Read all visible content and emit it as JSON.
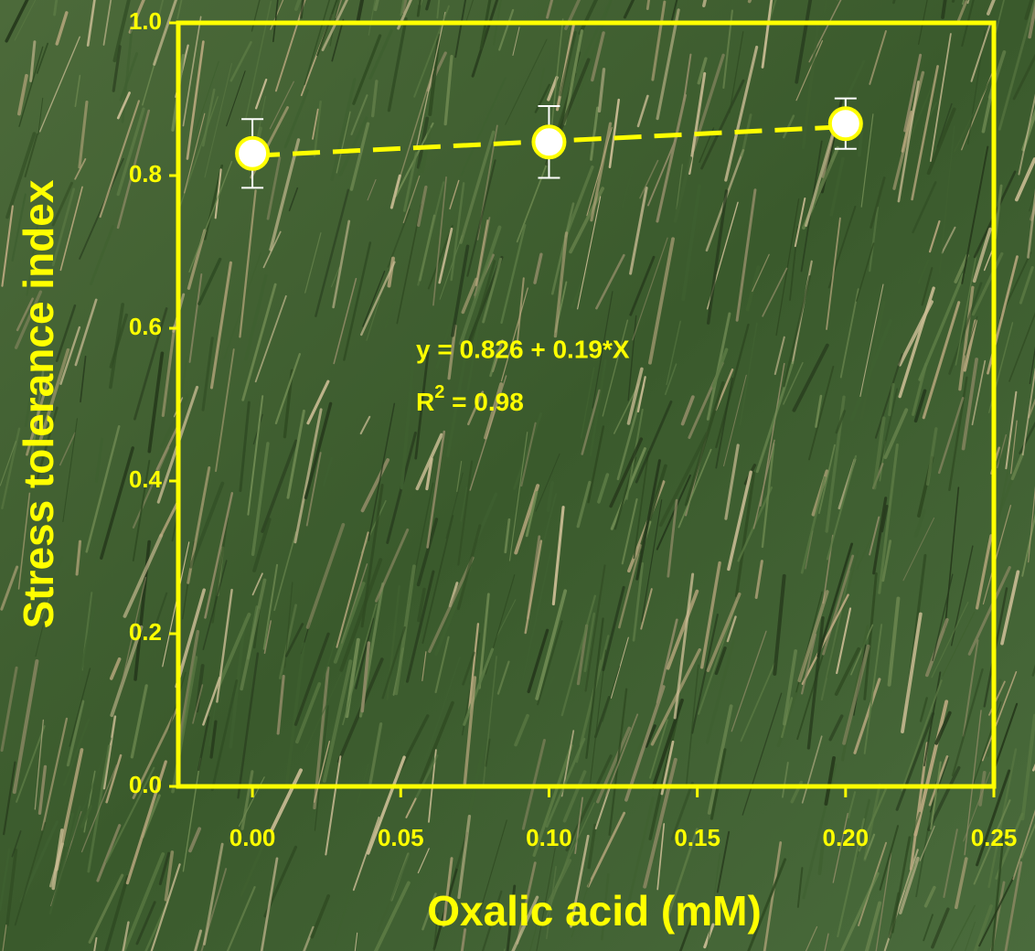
{
  "chart_data": {
    "type": "scatter",
    "xlabel": "Oxalic acid (mM)",
    "ylabel": "Stress tolerance index",
    "x": [
      0,
      0.1,
      0.2
    ],
    "values": [
      0.829,
      0.844,
      0.868
    ],
    "errors": [
      0.045,
      0.047,
      0.033
    ],
    "color": "#ffff00",
    "marker_fill": "#ffffff",
    "error_color": "#ffffff",
    "fit_line": {
      "x": [
        0,
        0.2
      ],
      "values": [
        0.826,
        0.864
      ],
      "color": "#ffff00",
      "dashed": true
    },
    "annotation": "y = 0.826 + 0.19*X",
    "r_squared": {
      "base": "R",
      "sup": "2",
      "rest": " = 0.98"
    },
    "xlim": [
      -0.025,
      0.25
    ],
    "xticks": [
      {
        "value": 0,
        "label": "0.00"
      },
      0.05,
      {
        "value": 0.1,
        "label": "0.10"
      },
      0.15,
      {
        "value": 0.2,
        "label": "0.20"
      },
      0.25
    ],
    "ylim": [
      0,
      1
    ],
    "yticks": [
      {
        "value": 0,
        "label": "0.0"
      },
      0.2,
      0.4,
      0.6,
      0.8,
      {
        "value": 1,
        "label": "1.0"
      }
    ],
    "grid": false
  }
}
